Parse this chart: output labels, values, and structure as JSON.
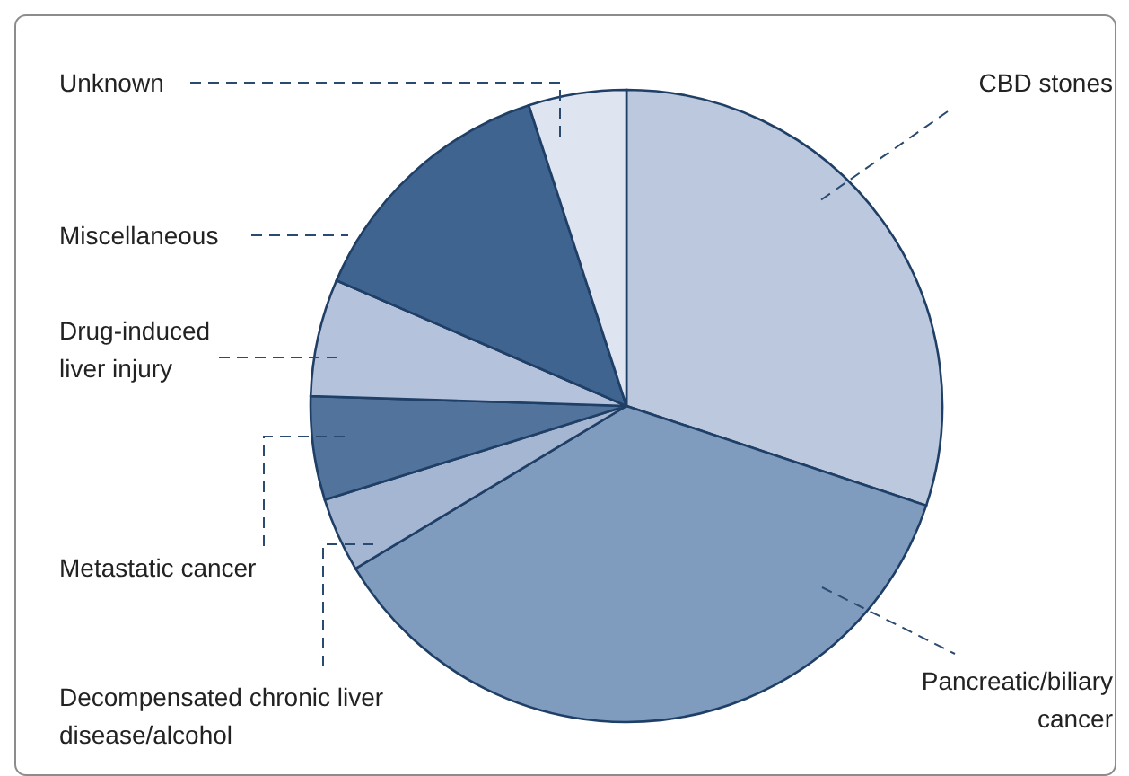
{
  "chart_data": {
    "type": "pie",
    "categories": [
      "CBD stones",
      "Pancreatic/biliary cancer",
      "Decompensated chronic liver disease/alcohol",
      "Metastatic cancer",
      "Drug-induced liver injury",
      "Miscellaneous",
      "Unknown"
    ],
    "values": [
      30.1,
      36.3,
      3.8,
      5.3,
      6,
      13.5,
      5
    ],
    "colors": [
      "#bcc8dd",
      "#7f9cbf",
      "#a5b6d2",
      "#52739c",
      "#b5c2dc",
      "#3f6490",
      "#dfe5f0"
    ]
  }
}
